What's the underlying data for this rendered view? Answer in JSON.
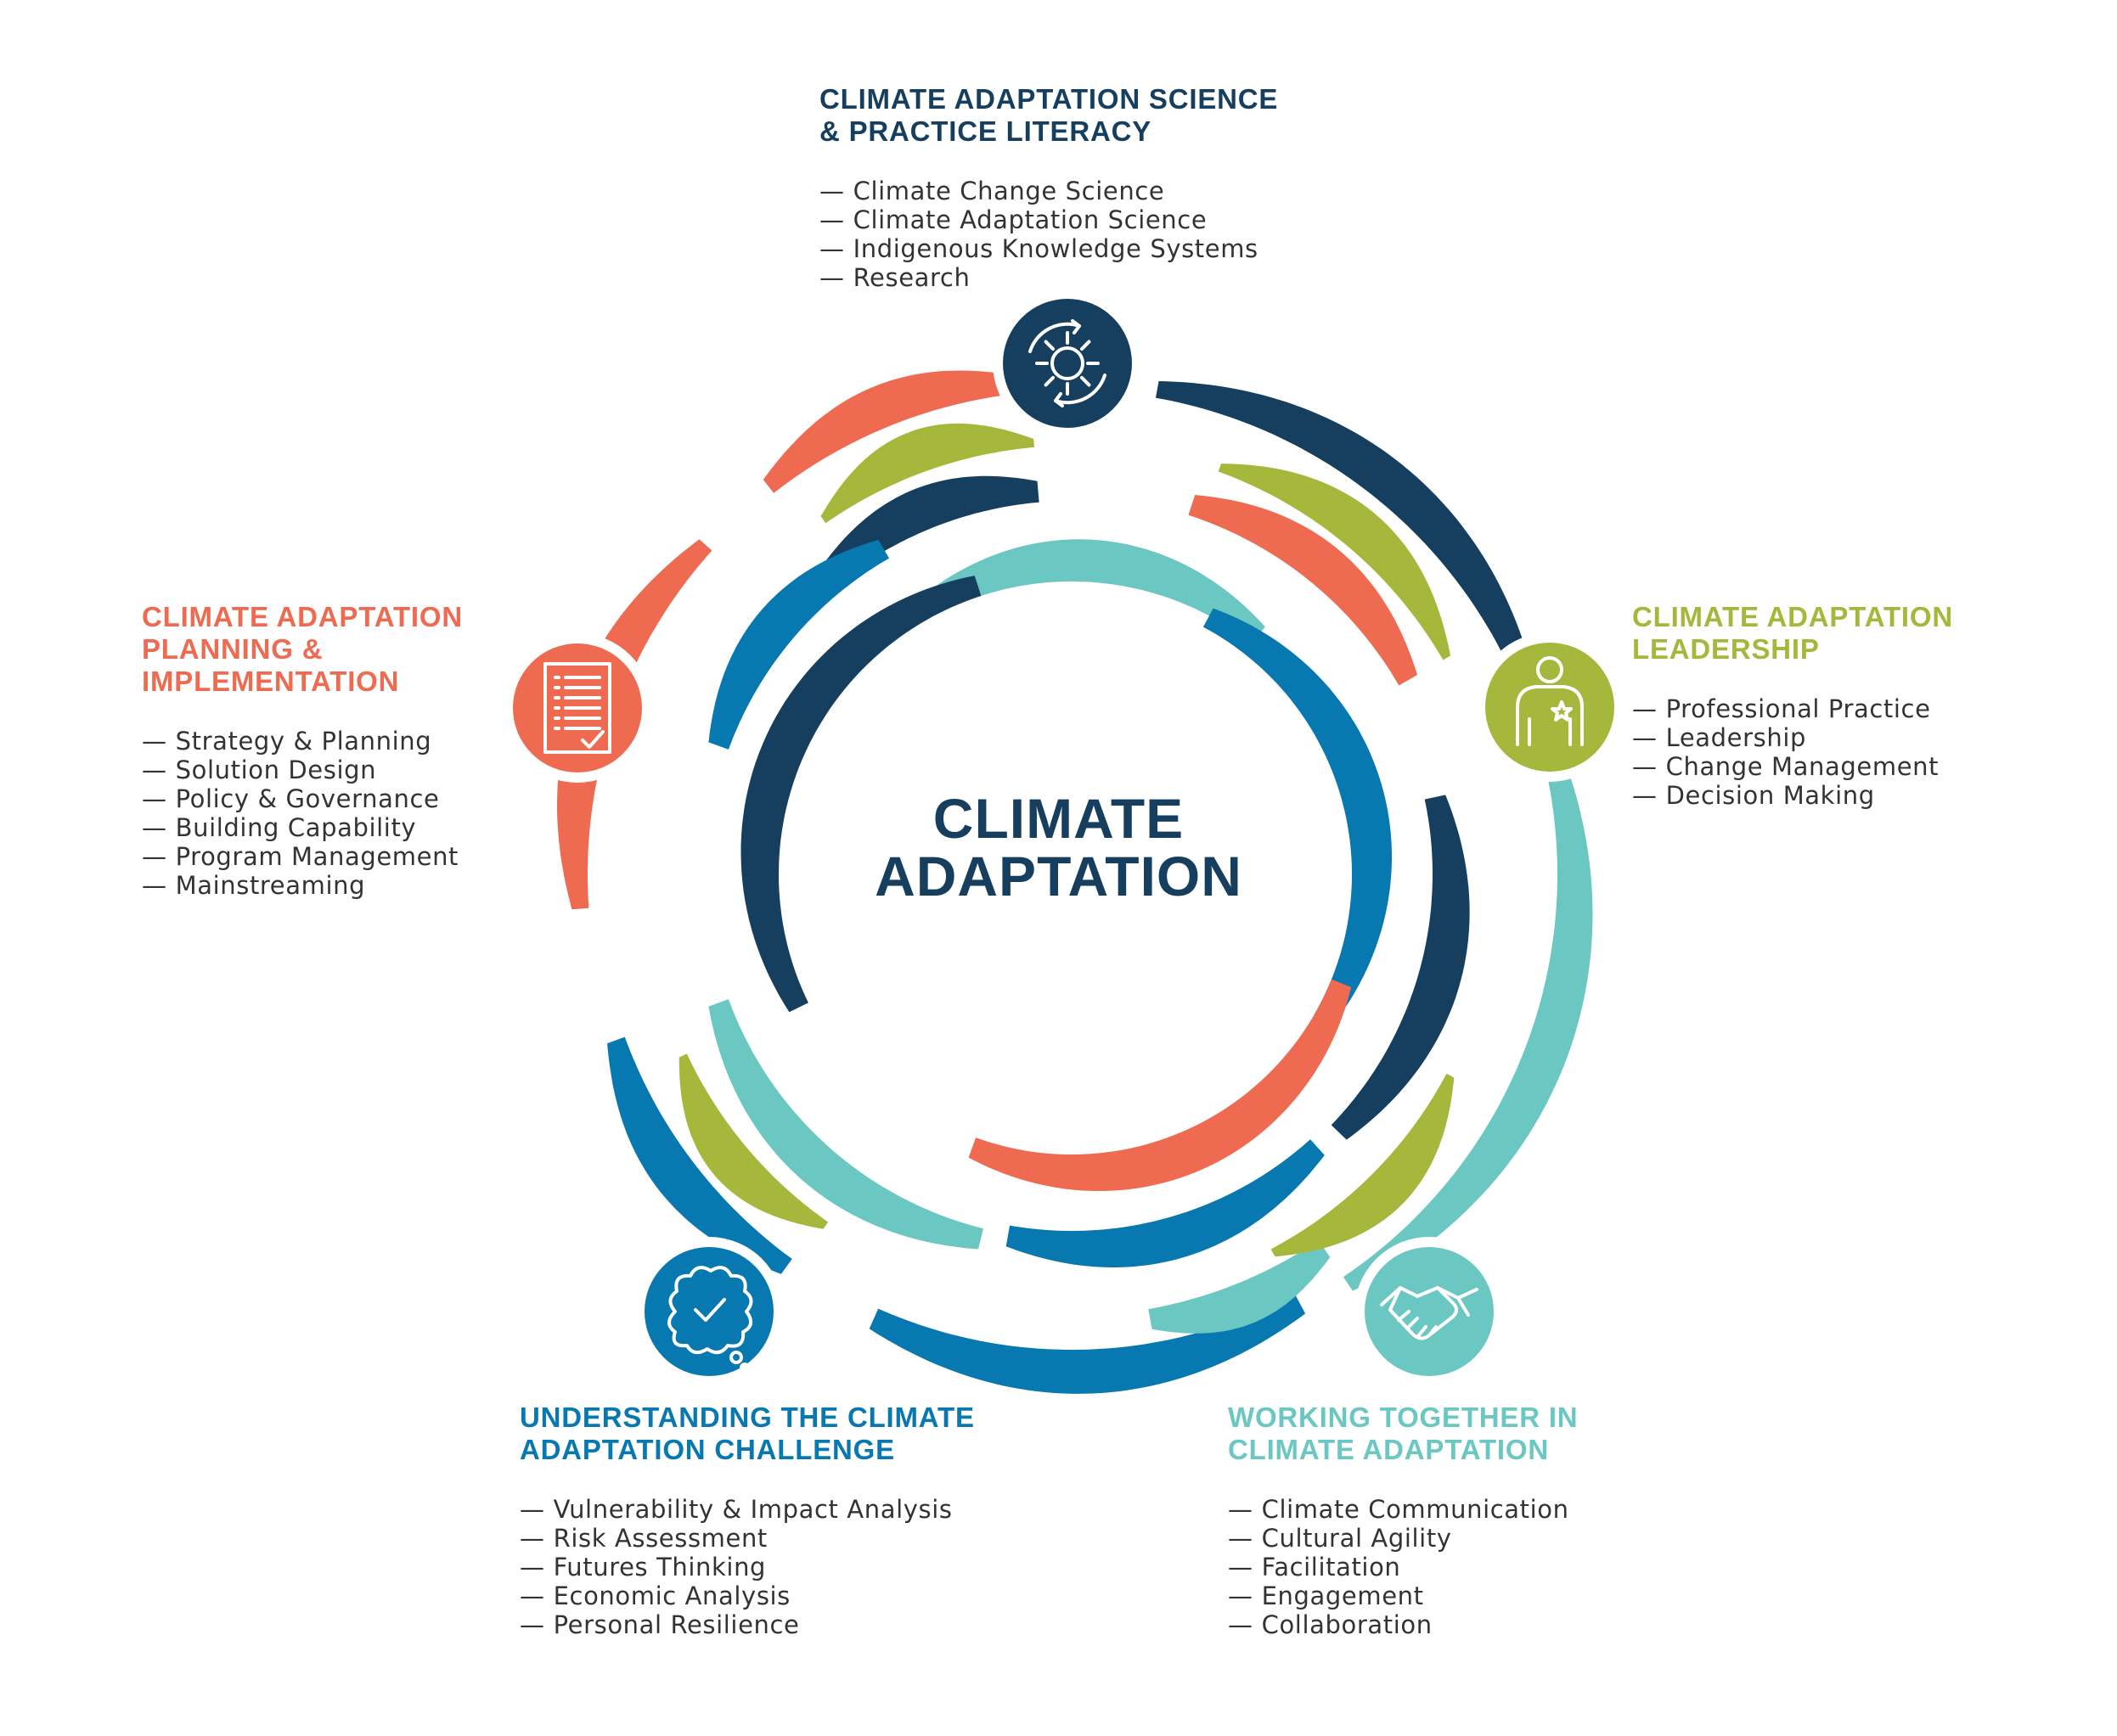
{
  "center": {
    "line1": "CLIMATE",
    "line2": "ADAPTATION"
  },
  "colors": {
    "navy": "#163F5F",
    "orange": "#EE6A50",
    "green": "#A6B83B",
    "blue": "#0878B0",
    "teal": "#6BC7C2",
    "text": "#333333"
  },
  "sections": {
    "science": {
      "title": "CLIMATE ADAPTATION SCIENCE & PRACTICE LITERACY",
      "title_line1": "CLIMATE ADAPTATION SCIENCE",
      "title_line2": "& PRACTICE LITERACY",
      "icon": "sun-cycle-icon",
      "items": [
        "Climate Change Science",
        "Climate Adaptation Science",
        "Indigenous Knowledge Systems",
        "Research"
      ]
    },
    "leadership": {
      "title_line1": "CLIMATE ADAPTATION",
      "title_line2": "LEADERSHIP",
      "icon": "leader-person-icon",
      "items": [
        "Professional Practice",
        "Leadership",
        "Change Management",
        "Decision Making"
      ]
    },
    "planning": {
      "title_line1": "CLIMATE ADAPTATION",
      "title_line2": "PLANNING &",
      "title_line3": "IMPLEMENTATION",
      "icon": "checklist-document-icon",
      "items": [
        "Strategy & Planning",
        "Solution Design",
        "Policy & Governance",
        "Building Capability",
        "Program Management",
        "Mainstreaming"
      ]
    },
    "understanding": {
      "title_line1": "UNDERSTANDING THE CLIMATE",
      "title_line2": "ADAPTATION CHALLENGE",
      "icon": "thought-check-icon",
      "items": [
        "Vulnerability & Impact Analysis",
        "Risk Assessment",
        "Futures Thinking",
        "Economic Analysis",
        "Personal Resilience"
      ]
    },
    "working": {
      "title_line1": "WORKING TOGETHER IN",
      "title_line2": "CLIMATE ADAPTATION",
      "icon": "handshake-icon",
      "items": [
        "Climate Communication",
        "Cultural Agility",
        "Facilitation",
        "Engagement",
        "Collaboration"
      ]
    }
  },
  "list_dash": "—"
}
